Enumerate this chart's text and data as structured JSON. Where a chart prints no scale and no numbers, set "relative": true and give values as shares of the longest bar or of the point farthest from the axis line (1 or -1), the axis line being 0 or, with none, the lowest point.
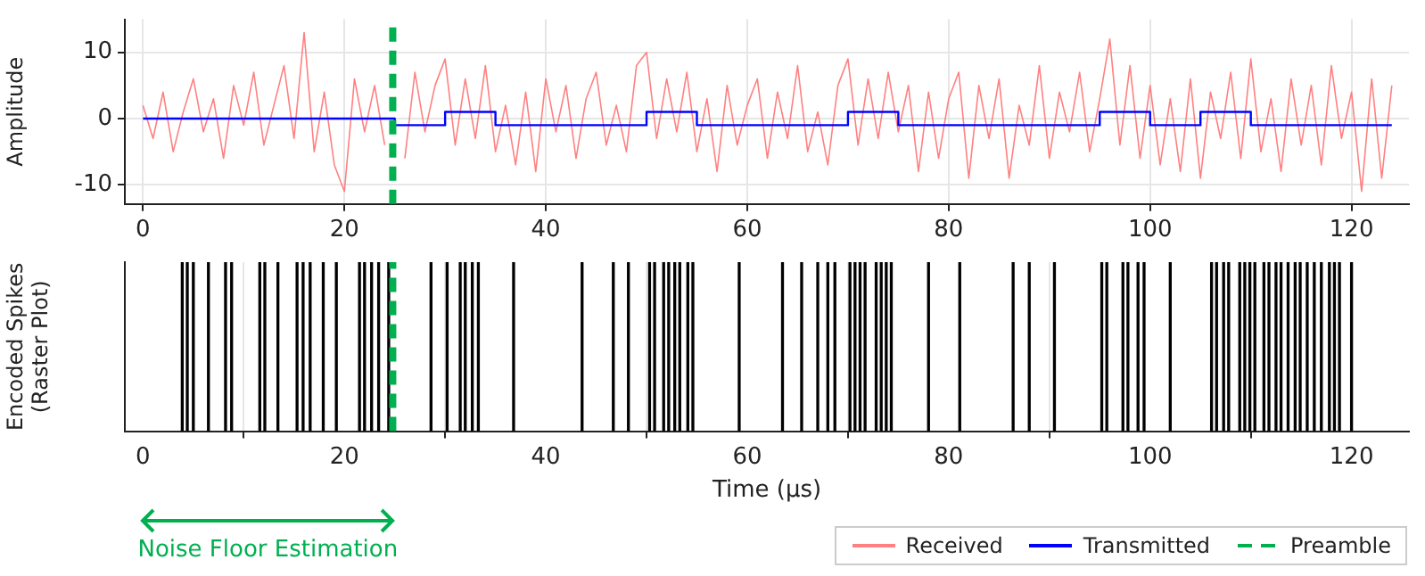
{
  "chart_data": [
    {
      "type": "line",
      "ylabel": "Amplitude",
      "xlim": [
        -1.8,
        125.7
      ],
      "xticks": [
        0,
        20,
        40,
        60,
        80,
        100,
        120
      ],
      "ylim": [
        -12.9,
        15
      ],
      "yticks": [
        -10,
        0,
        10
      ],
      "grid": true,
      "legend": "bottom",
      "series": [
        {
          "name": "Received",
          "color": "#ff8080",
          "x": [
            0,
            1,
            2,
            3,
            4,
            5,
            6,
            7,
            8,
            9,
            10,
            11,
            12,
            13,
            14,
            15,
            16,
            17,
            18,
            19,
            20,
            21,
            22,
            23,
            24,
            25,
            26,
            27,
            28,
            29,
            30,
            31,
            32,
            33,
            34,
            35,
            36,
            37,
            38,
            39,
            40,
            41,
            42,
            43,
            44,
            45,
            46,
            47,
            48,
            49,
            50,
            51,
            52,
            53,
            54,
            55,
            56,
            57,
            58,
            59,
            60,
            61,
            62,
            63,
            64,
            65,
            66,
            67,
            68,
            69,
            70,
            71,
            72,
            73,
            74,
            75,
            76,
            77,
            78,
            79,
            80,
            81,
            82,
            83,
            84,
            85,
            86,
            87,
            88,
            89,
            90,
            91,
            92,
            93,
            94,
            95,
            96,
            97,
            98,
            99,
            100,
            101,
            102,
            103,
            104,
            105,
            106,
            107,
            108,
            109,
            110,
            111,
            112,
            113,
            114,
            115,
            116,
            117,
            118,
            119,
            120,
            121,
            122,
            123,
            124
          ],
          "values": [
            2,
            -3,
            4,
            -5,
            1,
            6,
            -2,
            3,
            -6,
            5,
            -1,
            7,
            -4,
            2,
            8,
            -3,
            13,
            -5,
            4,
            -7,
            -11,
            6,
            -2,
            5,
            -4,
            null,
            -6,
            7,
            -2,
            5,
            9,
            -4,
            6,
            -3,
            8,
            -5,
            2,
            -7,
            4,
            -8,
            6,
            -2,
            5,
            -6,
            3,
            7,
            -4,
            2,
            -5,
            8,
            10,
            -3,
            6,
            -2,
            7,
            -5,
            3,
            -8,
            5,
            -4,
            2,
            6,
            -6,
            4,
            -3,
            8,
            -5,
            1,
            -7,
            5,
            9,
            -4,
            6,
            -3,
            7,
            -2,
            5,
            -8,
            4,
            -6,
            3,
            7,
            -9,
            5,
            -3,
            6,
            -9,
            2,
            -4,
            8,
            -6,
            4,
            -2,
            7,
            -5,
            3,
            12,
            -4,
            8,
            -6,
            5,
            -7,
            3,
            -8,
            6,
            -9,
            4,
            -3,
            7,
            -6,
            9,
            -5,
            3,
            -8,
            6,
            -4,
            5,
            -7,
            8,
            -3,
            4,
            -11,
            6,
            -9,
            5
          ]
        },
        {
          "name": "Transmitted",
          "type": "step",
          "color": "#0000ff",
          "x": [
            0,
            25,
            30,
            35,
            50,
            55,
            70,
            75,
            95,
            100,
            105,
            110,
            124
          ],
          "values": [
            0,
            -1,
            1,
            -1,
            1,
            -1,
            1,
            -1,
            1,
            -1,
            1,
            -1,
            -1
          ]
        }
      ],
      "ref_lines": [
        {
          "axis": "x",
          "value": 24.8,
          "label": "Preamble",
          "color": "#00b050",
          "line_style": "dashed"
        }
      ]
    },
    {
      "type": "bar",
      "relative": true,
      "color": "#000000",
      "xlabel": "Time (µs)",
      "ylabel": "Encoded Spikes\n(Raster Plot)",
      "xlim": [
        -1.8,
        125.7
      ],
      "xticks": [
        0,
        20,
        40,
        60,
        80,
        100,
        120
      ],
      "grid": "x",
      "x": [
        3.9,
        4.4,
        5.0,
        6.5,
        8.2,
        8.8,
        11.6,
        12.1,
        13.4,
        15.3,
        15.9,
        16.6,
        17.9,
        19.2,
        21.5,
        22.0,
        22.7,
        23.4,
        24.4,
        28.6,
        30.2,
        31.5,
        32.0,
        32.7,
        33.3,
        36.8,
        43.6,
        46.7,
        48.2,
        50.3,
        50.8,
        51.7,
        52.2,
        52.8,
        53.3,
        54.1,
        54.6,
        59.2,
        63.5,
        65.4,
        67.0,
        68.0,
        68.7,
        70.2,
        70.7,
        71.2,
        71.7,
        72.8,
        73.3,
        73.8,
        74.3,
        78.0,
        81.1,
        86.4,
        88.0,
        90.5,
        95.2,
        95.7,
        97.3,
        97.8,
        98.8,
        99.4,
        102.0,
        106.1,
        106.6,
        107.3,
        107.8,
        108.9,
        109.4,
        109.9,
        110.4,
        111.3,
        111.8,
        112.5,
        113.0,
        113.7,
        114.4,
        114.9,
        115.6,
        116.3,
        117.0,
        117.8,
        118.3,
        118.8,
        120.0
      ],
      "values": [
        1,
        1,
        1,
        1,
        1,
        1,
        1,
        1,
        1,
        1,
        1,
        1,
        1,
        1,
        1,
        1,
        1,
        1,
        1,
        1,
        1,
        1,
        1,
        1,
        1,
        1,
        1,
        1,
        1,
        1,
        1,
        1,
        1,
        1,
        1,
        1,
        1,
        1,
        1,
        1,
        1,
        1,
        1,
        1,
        1,
        1,
        1,
        1,
        1,
        1,
        1,
        1,
        1,
        1,
        1,
        1,
        1,
        1,
        1,
        1,
        1,
        1,
        1,
        1,
        1,
        1,
        1,
        1,
        1,
        1,
        1,
        1,
        1,
        1,
        1,
        1,
        1,
        1,
        1,
        1,
        1,
        1,
        1,
        1,
        1
      ],
      "ref_lines": [
        {
          "axis": "x",
          "value": 24.8,
          "color": "#00b050",
          "line_style": "dashed"
        }
      ],
      "annotations": [
        "Noise Floor Estimation"
      ]
    }
  ]
}
